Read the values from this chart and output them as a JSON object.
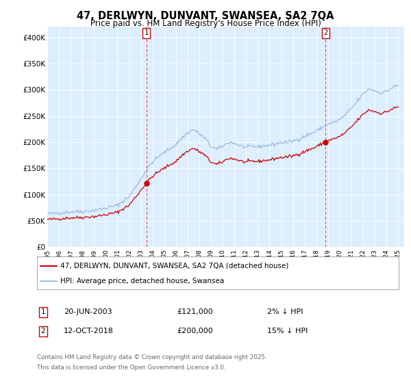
{
  "title": "47, DERLWYN, DUNVANT, SWANSEA, SA2 7QA",
  "subtitle": "Price paid vs. HM Land Registry's House Price Index (HPI)",
  "legend_property": "47, DERLWYN, DUNVANT, SWANSEA, SA2 7QA (detached house)",
  "legend_hpi": "HPI: Average price, detached house, Swansea",
  "transaction1": {
    "label": "1",
    "date": "20-JUN-2003",
    "price": "£121,000",
    "hpi_diff": "2% ↓ HPI"
  },
  "transaction2": {
    "label": "2",
    "date": "12-OCT-2018",
    "price": "£200,000",
    "hpi_diff": "15% ↓ HPI"
  },
  "footnote1": "Contains HM Land Registry data © Crown copyright and database right 2025.",
  "footnote2": "This data is licensed under the Open Government Licence v3.0.",
  "property_color": "#cc0000",
  "hpi_color": "#a0c0e0",
  "plot_bg_color": "#ddeeff",
  "fig_bg_color": "#ffffff",
  "ylim": [
    0,
    420000
  ],
  "yticks": [
    0,
    50000,
    100000,
    150000,
    200000,
    250000,
    300000,
    350000,
    400000
  ],
  "ytick_labels": [
    "£0",
    "£50K",
    "£100K",
    "£150K",
    "£200K",
    "£250K",
    "£300K",
    "£350K",
    "£400K"
  ],
  "xlim_start": 1995,
  "xlim_end": 2025.5,
  "t1_x": 2003.47,
  "t1_y": 121000,
  "t2_x": 2018.79,
  "t2_y": 200000,
  "hpi_base_points_x": [
    1995.0,
    1996.0,
    1997.0,
    1998.0,
    1999.0,
    2000.0,
    2001.0,
    2002.0,
    2003.0,
    2003.5,
    2004.0,
    2004.5,
    2005.0,
    2005.5,
    2006.0,
    2006.5,
    2007.0,
    2007.5,
    2008.0,
    2008.5,
    2009.0,
    2009.5,
    2010.0,
    2010.5,
    2011.0,
    2011.5,
    2012.0,
    2012.5,
    2013.0,
    2013.5,
    2014.0,
    2014.5,
    2015.0,
    2015.5,
    2016.0,
    2016.5,
    2017.0,
    2017.5,
    2018.0,
    2018.5,
    2019.0,
    2019.5,
    2020.0,
    2020.5,
    2021.0,
    2021.5,
    2022.0,
    2022.5,
    2023.0,
    2023.5,
    2024.0,
    2024.5,
    2025.0
  ],
  "hpi_base_points_y": [
    63000,
    65000,
    67000,
    68000,
    70000,
    74000,
    80000,
    96000,
    130000,
    148000,
    162000,
    172000,
    180000,
    188000,
    195000,
    208000,
    218000,
    224000,
    216000,
    207000,
    192000,
    186000,
    192000,
    200000,
    198000,
    193000,
    190000,
    192000,
    191000,
    193000,
    194000,
    197000,
    199000,
    200000,
    202000,
    206000,
    211000,
    216000,
    221000,
    228000,
    234000,
    238000,
    243000,
    252000,
    264000,
    278000,
    292000,
    302000,
    298000,
    294000,
    297000,
    304000,
    308000
  ]
}
